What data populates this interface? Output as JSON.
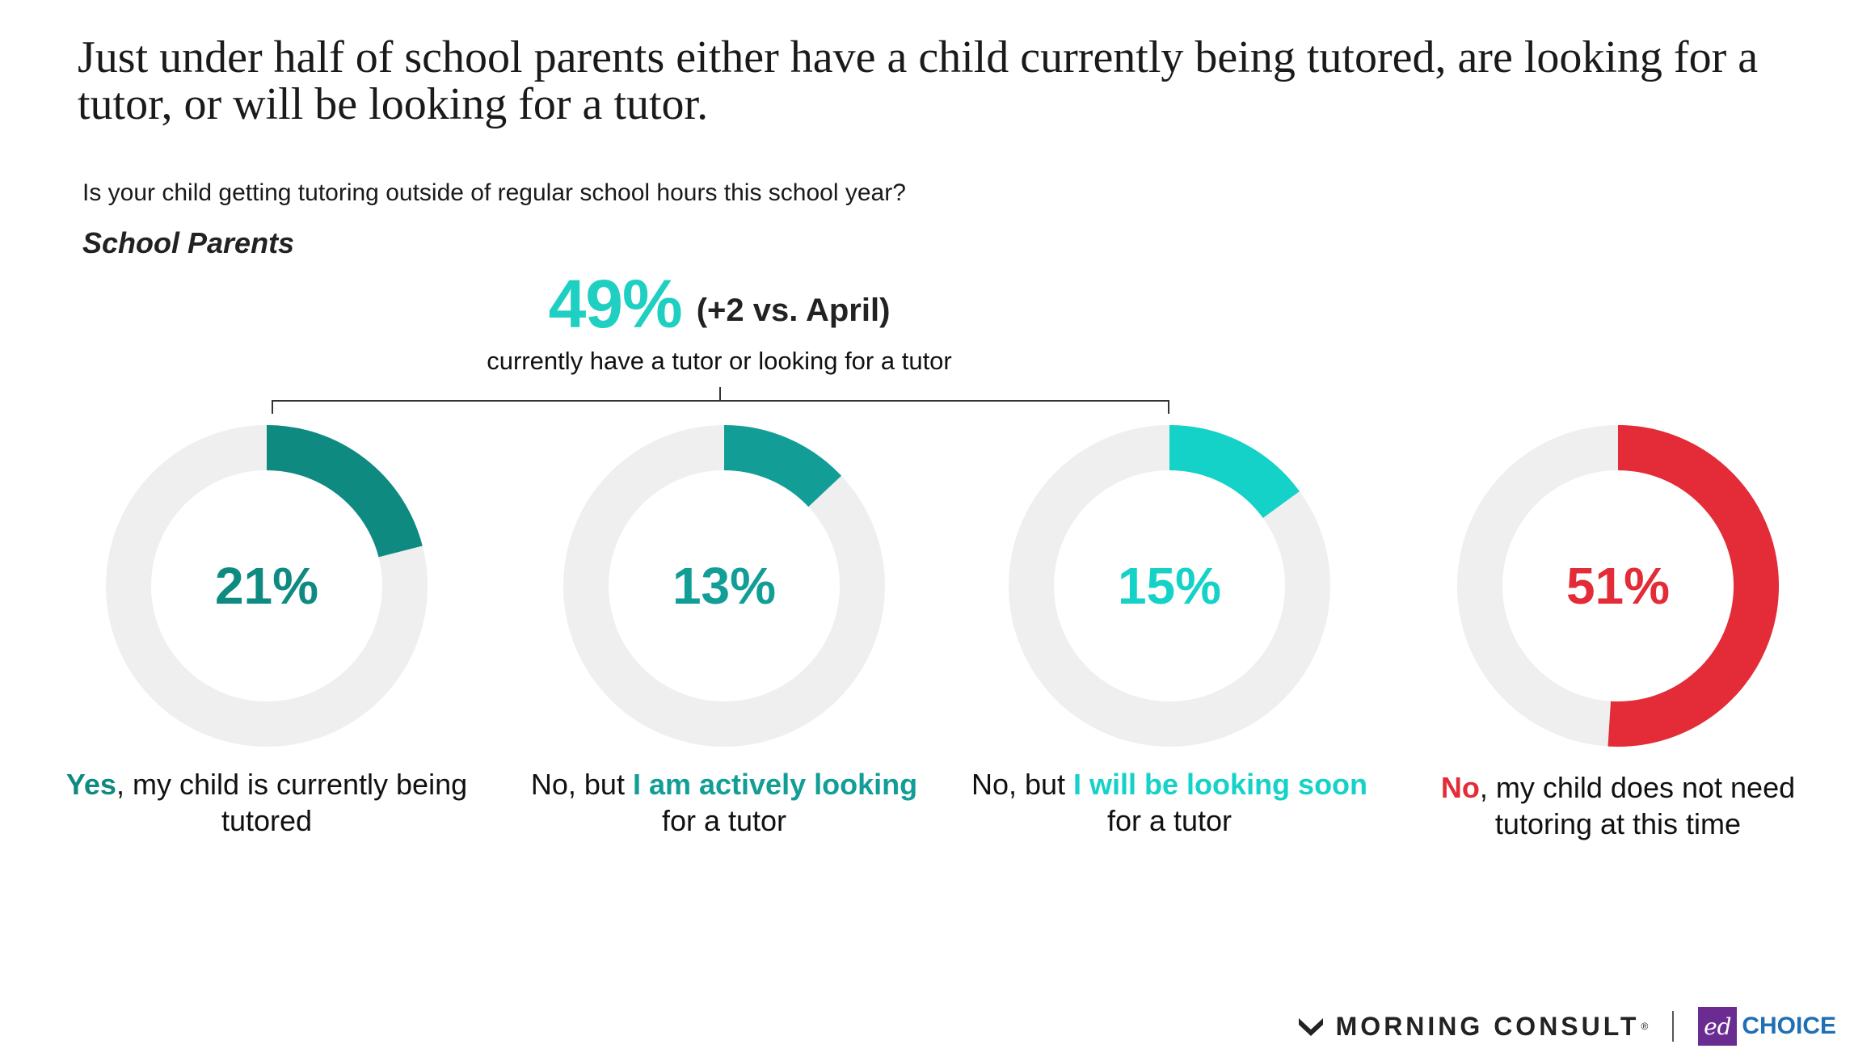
{
  "headline": "Just under half of school parents either have a child currently being tutored, are looking for a tutor, or will be looking for a tutor.",
  "question": "Is your child getting tutoring outside of regular school hours this school year?",
  "group_label": "School Parents",
  "summary": {
    "value": "49%",
    "change": "(+2 vs. April)",
    "description": "currently have a tutor or looking for a tutor"
  },
  "chart_data": {
    "type": "pie",
    "subtype": "donut",
    "title": "Is your child getting tutoring outside of regular school hours this school year?",
    "subtitle": "School Parents",
    "ring_color": "#efefef",
    "slices": [
      {
        "value": 21,
        "label": "21%",
        "color": "#0e8a80",
        "caption": {
          "highlight_1": "Yes",
          "rest_1": ", my child is currently being tutored",
          "highlight_2": "",
          "rest_2": ""
        }
      },
      {
        "value": 13,
        "label": "13%",
        "color": "#129e96",
        "caption": {
          "highlight_1": "",
          "rest_1": "No, but ",
          "highlight_2": "I am actively looking",
          "rest_2": " for a tutor"
        }
      },
      {
        "value": 15,
        "label": "15%",
        "color": "#14d2c8",
        "caption": {
          "highlight_1": "",
          "rest_1": "No, but ",
          "highlight_2": "I will be looking soon",
          "rest_2": " for a tutor"
        }
      },
      {
        "value": 51,
        "label": "51%",
        "color": "#e32c37",
        "caption": {
          "highlight_1": "No",
          "rest_1": ", my child does not need tutoring at this time",
          "highlight_2": "",
          "rest_2": ""
        }
      }
    ]
  },
  "footer": {
    "brand": "MORNING CONSULT",
    "registered": "®",
    "partner_mark": "ed",
    "partner_text": "CHOICE"
  },
  "icons": {
    "morning_consult_logo": "mc-logo-icon",
    "edchoice_logo": "edchoice-logo"
  }
}
